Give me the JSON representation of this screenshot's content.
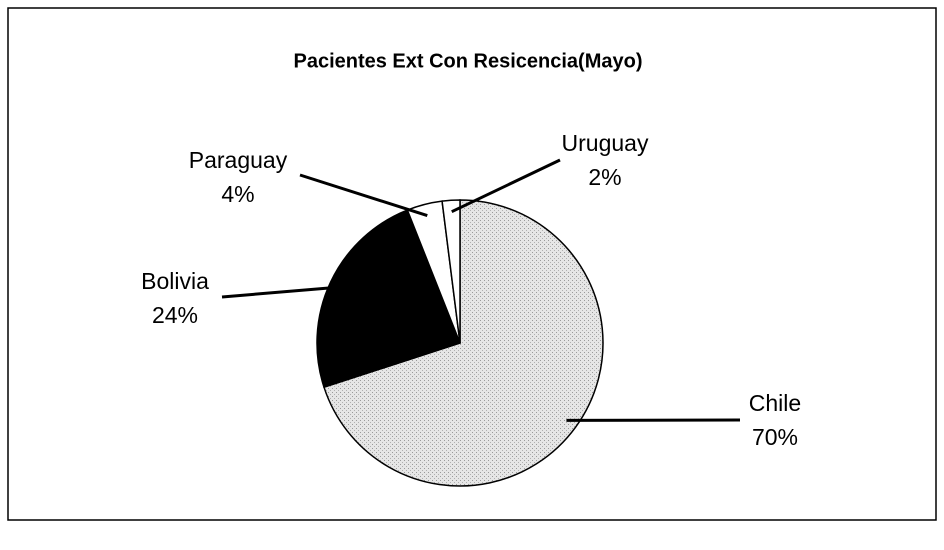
{
  "chart_data": {
    "type": "pie",
    "title": "Pacientes Ext Con Resicencia(Mayo)",
    "categories": [
      "Chile",
      "Bolivia",
      "Paraguay",
      "Uruguay"
    ],
    "values": [
      70,
      24,
      4,
      2
    ],
    "value_labels": [
      "70%",
      "24%",
      "4%",
      "2%"
    ],
    "colors": [
      "#dcdcdc",
      "#000000",
      "#ffffff",
      "#ffffff"
    ]
  }
}
